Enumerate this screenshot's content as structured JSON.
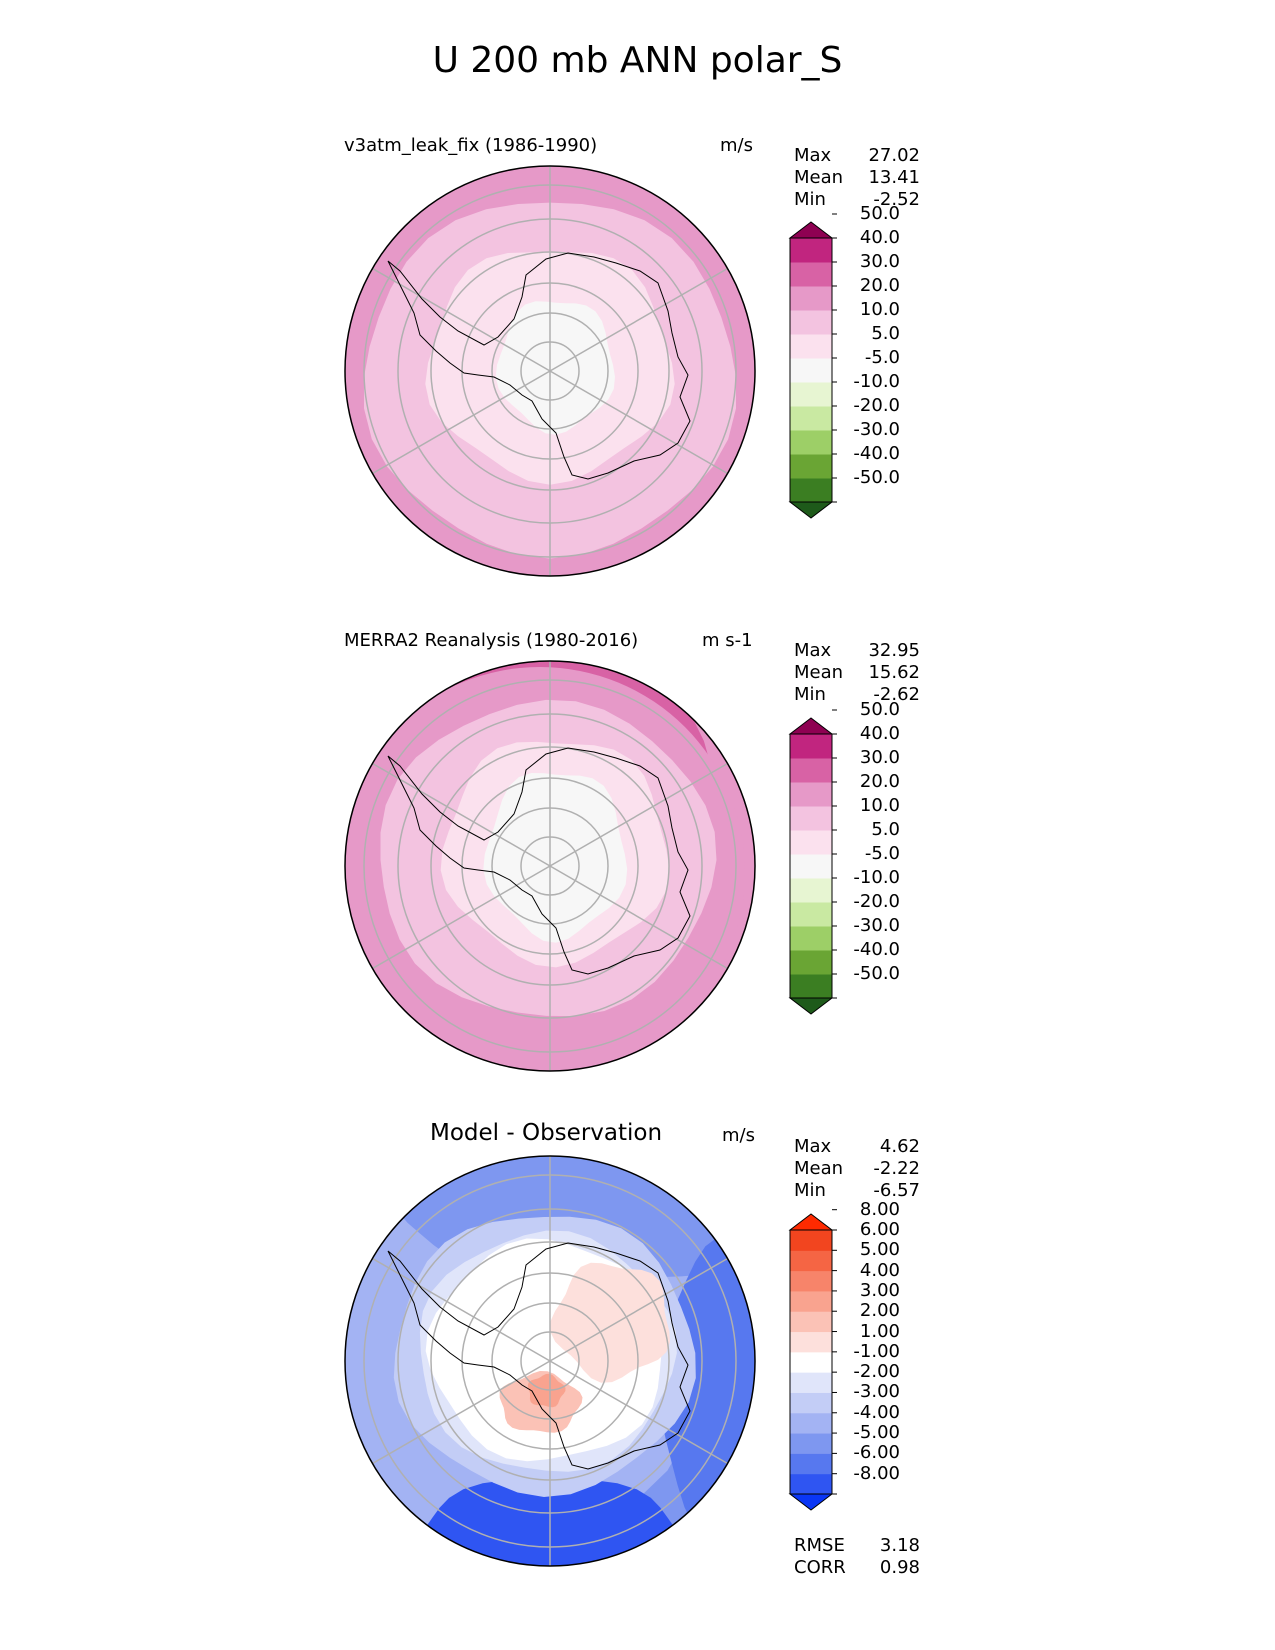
{
  "title": "U 200 mb ANN polar_S",
  "chart_data": [
    {
      "type": "heatmap",
      "projection": "south-polar-stereographic",
      "title": "v3atm_leak_fix (1986-1990)",
      "units": "m/s",
      "stats": [
        {
          "label": "Max",
          "value": "27.02"
        },
        {
          "label": "Mean",
          "value": "13.41"
        },
        {
          "label": "Min",
          "value": "-2.52"
        }
      ],
      "colorbar": {
        "colors": [
          "#1e5a1a",
          "#3b7e22",
          "#6aa534",
          "#9dcf67",
          "#c9e9a2",
          "#e7f5d2",
          "#f7f7f7",
          "#fbe1ee",
          "#f3c3e0",
          "#e699c8",
          "#d862a5",
          "#c1257f",
          "#8e0152"
        ],
        "labels": [
          "-50.0",
          "-40.0",
          "-30.0",
          "-20.0",
          "-10.0",
          "-5.0",
          "5.0",
          "10.0",
          "20.0",
          "30.0",
          "40.0",
          "50.0"
        ],
        "extend": "both"
      },
      "field_description": "Annual mean 200 mb zonal wind; weak (-5 to 5) over Antarctic interior rising to 20-30 m/s near 50S"
    },
    {
      "type": "heatmap",
      "projection": "south-polar-stereographic",
      "title": "MERRA2 Reanalysis (1980-2016)",
      "units": "m s-1",
      "stats": [
        {
          "label": "Max",
          "value": "32.95"
        },
        {
          "label": "Mean",
          "value": "15.62"
        },
        {
          "label": "Min",
          "value": "-2.62"
        }
      ],
      "colorbar": {
        "colors": [
          "#1e5a1a",
          "#3b7e22",
          "#6aa534",
          "#9dcf67",
          "#c9e9a2",
          "#e7f5d2",
          "#f7f7f7",
          "#fbe1ee",
          "#f3c3e0",
          "#e699c8",
          "#d862a5",
          "#c1257f",
          "#8e0152"
        ],
        "labels": [
          "-50.0",
          "-40.0",
          "-30.0",
          "-20.0",
          "-10.0",
          "-5.0",
          "5.0",
          "10.0",
          "20.0",
          "30.0",
          "40.0",
          "50.0"
        ],
        "extend": "both"
      }
    },
    {
      "type": "heatmap",
      "projection": "south-polar-stereographic",
      "title": "Model - Observation",
      "units": "m/s",
      "stats": [
        {
          "label": "Max",
          "value": "4.62"
        },
        {
          "label": "Mean",
          "value": "-2.22"
        },
        {
          "label": "Min",
          "value": "-6.57"
        }
      ],
      "colorbar": {
        "colors": [
          "#0a36f5",
          "#2f55f2",
          "#5778ef",
          "#7e97f0",
          "#a3b3f3",
          "#c3cdf6",
          "#e0e5fa",
          "#ffffff",
          "#fde0dc",
          "#fbc2b6",
          "#f9a38f",
          "#f7846a",
          "#f56544",
          "#f2451f",
          "#ff2a00"
        ],
        "labels": [
          "-8.00",
          "-6.00",
          "-5.00",
          "-4.00",
          "-3.00",
          "-2.00",
          "-1.00",
          "1.00",
          "2.00",
          "3.00",
          "4.00",
          "5.00",
          "6.00",
          "8.00"
        ],
        "extend": "both"
      },
      "metrics": [
        {
          "label": "RMSE",
          "value": "3.18"
        },
        {
          "label": "CORR",
          "value": "0.98"
        }
      ]
    }
  ]
}
